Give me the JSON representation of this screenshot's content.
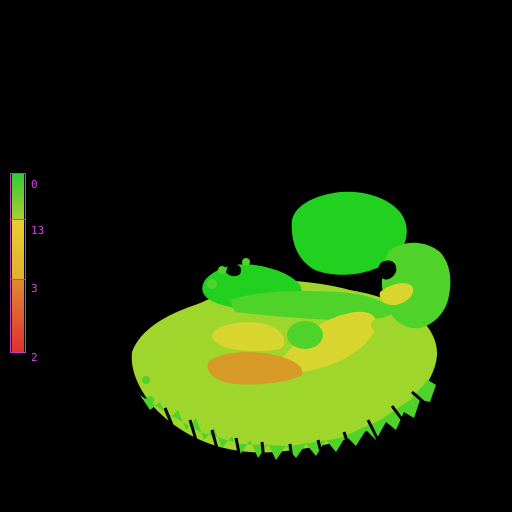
{
  "colorbar": {
    "labels": [
      "0",
      "13",
      "3",
      "2"
    ],
    "colors": {
      "top": "#33cc33",
      "upper_mid": "#a8d030",
      "mid": "#e6d130",
      "lower_mid": "#e0a030",
      "bottom": "#e03030",
      "frame": "#c040c0",
      "label": "#e040e0"
    }
  },
  "scan": {
    "palette": {
      "bright_green": "#22d11f",
      "mid_green": "#4fd32a",
      "yellow_green": "#9fd62c",
      "yellow": "#d8d62e",
      "orange": "#d89a26",
      "black": "#000000"
    }
  }
}
